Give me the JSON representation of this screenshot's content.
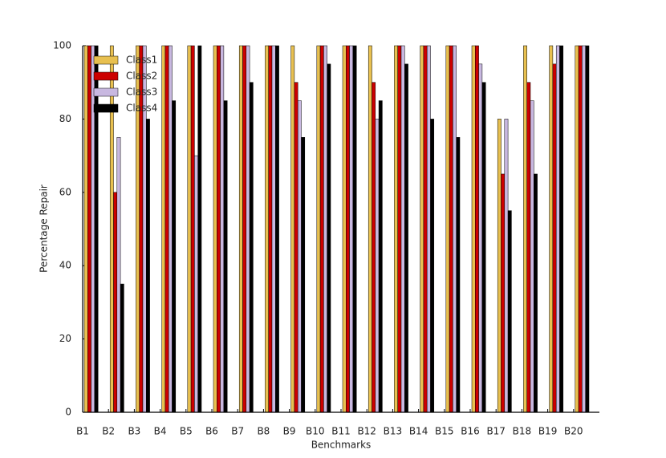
{
  "chart_data": {
    "type": "bar",
    "x_label": "Benchmarks",
    "y_label": "Percentage Repair",
    "categories": [
      "B1",
      "B2",
      "B3",
      "B4",
      "B5",
      "B6",
      "B7",
      "B8",
      "B9",
      "B10",
      "B11",
      "B12",
      "B13",
      "B14",
      "B15",
      "B16",
      "B17",
      "B18",
      "B19",
      "B20"
    ],
    "series": [
      {
        "name": "Class1",
        "color": "#e8c050",
        "values": [
          100,
          100,
          100,
          100,
          100,
          100,
          100,
          100,
          100,
          100,
          100,
          100,
          100,
          100,
          100,
          100,
          80,
          100,
          100,
          100
        ]
      },
      {
        "name": "Class2",
        "color": "#cc0000",
        "values": [
          100,
          60,
          100,
          100,
          100,
          100,
          100,
          100,
          90,
          100,
          100,
          90,
          100,
          100,
          100,
          100,
          65,
          90,
          95,
          100
        ]
      },
      {
        "name": "Class3",
        "color": "#c8b8e0",
        "values": [
          100,
          75,
          100,
          100,
          70,
          100,
          100,
          100,
          85,
          100,
          100,
          80,
          100,
          100,
          100,
          95,
          80,
          85,
          100,
          100
        ]
      },
      {
        "name": "Class4",
        "color": "#000000",
        "values": [
          100,
          35,
          80,
          85,
          100,
          85,
          90,
          100,
          75,
          95,
          100,
          85,
          95,
          80,
          75,
          90,
          55,
          65,
          100,
          100
        ]
      }
    ],
    "ylim": [
      0,
      100
    ],
    "yticks": [
      0,
      20,
      40,
      60,
      80,
      100
    ],
    "legend": "upper-left"
  }
}
